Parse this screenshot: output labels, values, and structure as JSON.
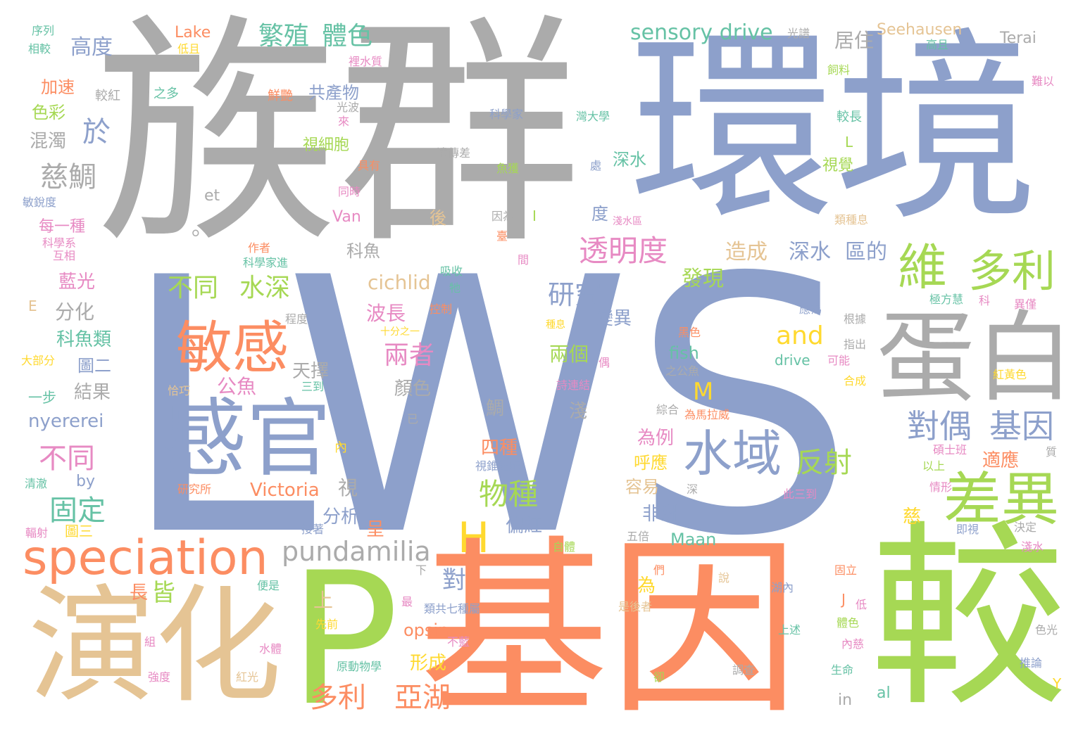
{
  "palette": {
    "gray": "#ababab",
    "blue": "#8da0cb",
    "orange": "#fc8d62",
    "green": "#a6d854",
    "tan": "#e5c494",
    "yellow": "#ffd92f",
    "pink": "#e78ac3",
    "teal": "#66c2a5"
  },
  "words": [
    {
      "text": "LWS",
      "color": "#8da0cb"
    },
    {
      "text": "族群",
      "color": "#ababab"
    },
    {
      "text": "環境",
      "color": "#8da0cb"
    },
    {
      "text": "基因",
      "color": "#fc8d62"
    },
    {
      "text": "較",
      "color": "#a6d854"
    },
    {
      "text": "P",
      "color": "#a6d854"
    },
    {
      "text": "演化",
      "color": "#e5c494"
    },
    {
      "text": "蛋白",
      "color": "#ababab"
    },
    {
      "text": "感官",
      "color": "#8da0cb"
    },
    {
      "text": "speciation",
      "color": "#fc8d62"
    },
    {
      "text": "差異",
      "color": "#a6d854"
    },
    {
      "text": "敏感",
      "color": "#fc8d62"
    },
    {
      "text": "水域",
      "color": "#8da0cb"
    },
    {
      "text": "維",
      "color": "#a6d854"
    },
    {
      "text": "多利",
      "color": "#a6d854"
    },
    {
      "text": "H",
      "color": "#ffd92f"
    },
    {
      "text": "pundamilia",
      "color": "#ababab"
    },
    {
      "text": "透明度",
      "color": "#e78ac3"
    },
    {
      "text": "對偶",
      "color": "#8da0cb"
    },
    {
      "text": "基因",
      "color": "#8da0cb"
    },
    {
      "text": "反射",
      "color": "#a6d854"
    },
    {
      "text": "物種",
      "color": "#a6d854"
    },
    {
      "text": "多利",
      "color": "#fc8d62"
    },
    {
      "text": "亞湖",
      "color": "#fc8d62"
    },
    {
      "text": "固定",
      "color": "#66c2a5"
    },
    {
      "text": "不同",
      "color": "#e78ac3"
    },
    {
      "text": "不同",
      "color": "#a6d854"
    },
    {
      "text": "水深",
      "color": "#a6d854"
    },
    {
      "text": "繁殖",
      "color": "#66c2a5"
    },
    {
      "text": "體色",
      "color": "#66c2a5"
    },
    {
      "text": "sensory drive",
      "color": "#66c2a5"
    },
    {
      "text": "研究",
      "color": "#8da0cb"
    },
    {
      "text": "and",
      "color": "#ffd92f"
    },
    {
      "text": "兩者",
      "color": "#e78ac3"
    },
    {
      "text": "慈鯛",
      "color": "#ababab"
    },
    {
      "text": "於",
      "color": "#8da0cb"
    },
    {
      "text": "Seehausen",
      "color": "#e5c494"
    },
    {
      "text": "Terai",
      "color": "#ababab"
    },
    {
      "text": "Lake",
      "color": "#fc8d62"
    },
    {
      "text": "高度",
      "color": "#8da0cb"
    },
    {
      "text": "居住",
      "color": "#ababab"
    },
    {
      "text": "cichlid",
      "color": "#e5c494"
    },
    {
      "text": "Victoria",
      "color": "#fc8d62"
    },
    {
      "text": "nyererei",
      "color": "#8da0cb"
    },
    {
      "text": "深水",
      "color": "#8da0cb"
    },
    {
      "text": "區的",
      "color": "#8da0cb"
    },
    {
      "text": "造成",
      "color": "#e5c494"
    },
    {
      "text": "發現",
      "color": "#a6d854"
    },
    {
      "text": "M",
      "color": "#ffd92f"
    },
    {
      "text": "fish",
      "color": "#66c2a5"
    },
    {
      "text": "drive",
      "color": "#66c2a5"
    },
    {
      "text": "opsin",
      "color": "#fc8d62"
    },
    {
      "text": "Maan",
      "color": "#66c2a5"
    },
    {
      "text": "Van",
      "color": "#e78ac3"
    },
    {
      "text": "et",
      "color": "#ababab"
    },
    {
      "text": "al",
      "color": "#66c2a5"
    },
    {
      "text": "in",
      "color": "#ababab"
    },
    {
      "text": "by",
      "color": "#8da0cb"
    },
    {
      "text": "E",
      "color": "#e5c494"
    },
    {
      "text": "L",
      "color": "#a6d854"
    },
    {
      "text": "J",
      "color": "#fc8d62"
    },
    {
      "text": "I",
      "color": "#a6d854"
    },
    {
      "text": "Y",
      "color": "#ffd92f"
    },
    {
      "text": "。",
      "color": "#ababab"
    },
    {
      "text": "波長",
      "color": "#e78ac3"
    },
    {
      "text": "變異",
      "color": "#8da0cb"
    },
    {
      "text": "兩個",
      "color": "#a6d854"
    },
    {
      "text": "公魚",
      "color": "#e78ac3"
    },
    {
      "text": "天擇",
      "color": "#ababab"
    },
    {
      "text": "顏色",
      "color": "#ababab"
    },
    {
      "text": "分化",
      "color": "#ababab"
    },
    {
      "text": "科魚類",
      "color": "#66c2a5"
    },
    {
      "text": "藍光",
      "color": "#e78ac3"
    },
    {
      "text": "每一種",
      "color": "#e78ac3"
    },
    {
      "text": "結果",
      "color": "#ababab"
    },
    {
      "text": "圖二",
      "color": "#8da0cb"
    },
    {
      "text": "混濁",
      "color": "#ababab"
    },
    {
      "text": "色彩",
      "color": "#a6d854"
    },
    {
      "text": "加速",
      "color": "#fc8d62"
    },
    {
      "text": "共產物",
      "color": "#8da0cb"
    },
    {
      "text": "視細胞",
      "color": "#a6d854"
    },
    {
      "text": "深水",
      "color": "#66c2a5"
    },
    {
      "text": "度",
      "color": "#8da0cb"
    },
    {
      "text": "淺",
      "color": "#ababab"
    },
    {
      "text": "非洲",
      "color": "#8da0cb"
    },
    {
      "text": "偏紅",
      "color": "#8da0cb"
    },
    {
      "text": "容易",
      "color": "#e5c494"
    },
    {
      "text": "呼應",
      "color": "#ffd92f"
    },
    {
      "text": "為例",
      "color": "#e78ac3"
    },
    {
      "text": "四種",
      "color": "#fc8d62"
    },
    {
      "text": "分析",
      "color": "#8da0cb"
    },
    {
      "text": "長",
      "color": "#fc8d62"
    },
    {
      "text": "皆",
      "color": "#a6d854"
    },
    {
      "text": "對",
      "color": "#8da0cb"
    },
    {
      "text": "上",
      "color": "#e5c494"
    },
    {
      "text": "形成",
      "color": "#ffd92f"
    },
    {
      "text": "視覺",
      "color": "#a6d854"
    },
    {
      "text": "適應",
      "color": "#fc8d62"
    },
    {
      "text": "慈",
      "color": "#ffd92f"
    },
    {
      "text": "為",
      "color": "#ffd92f"
    },
    {
      "text": "一步",
      "color": "#66c2a5"
    },
    {
      "text": "科魚",
      "color": "#ababab"
    },
    {
      "text": "後",
      "color": "#e5c494"
    },
    {
      "text": "呈",
      "color": "#fc8d62"
    },
    {
      "text": "視",
      "color": "#ababab"
    },
    {
      "text": "鯛",
      "color": "#ababab"
    },
    {
      "text": "序列",
      "color": "#66c2a5"
    },
    {
      "text": "相較",
      "color": "#66c2a5"
    },
    {
      "text": "低且",
      "color": "#ffd92f"
    },
    {
      "text": "裡水質",
      "color": "#e78ac3"
    },
    {
      "text": "光譜",
      "color": "#ababab"
    },
    {
      "text": "高且",
      "color": "#66c2a5"
    },
    {
      "text": "飼料",
      "color": "#a6d854"
    },
    {
      "text": "難以",
      "color": "#e78ac3"
    },
    {
      "text": "較紅",
      "color": "#ababab"
    },
    {
      "text": "之多",
      "color": "#66c2a5"
    },
    {
      "text": "鮮艷",
      "color": "#fc8d62"
    },
    {
      "text": "光波",
      "color": "#ababab"
    },
    {
      "text": "來",
      "color": "#e78ac3"
    },
    {
      "text": "科學家",
      "color": "#8da0cb"
    },
    {
      "text": "灣大學",
      "color": "#66c2a5"
    },
    {
      "text": "較長",
      "color": "#66c2a5"
    },
    {
      "text": "遺傳差",
      "color": "#ababab"
    },
    {
      "text": "具有",
      "color": "#fc8d62"
    },
    {
      "text": "魚獲",
      "color": "#a6d854"
    },
    {
      "text": "處",
      "color": "#8da0cb"
    },
    {
      "text": "同時",
      "color": "#e78ac3"
    },
    {
      "text": "敏銳度",
      "color": "#8da0cb"
    },
    {
      "text": "因為",
      "color": "#ababab"
    },
    {
      "text": "淺水區",
      "color": "#e78ac3"
    },
    {
      "text": "類種息",
      "color": "#e5c494"
    },
    {
      "text": "科學系",
      "color": "#e78ac3"
    },
    {
      "text": "互相",
      "color": "#e78ac3"
    },
    {
      "text": "作者",
      "color": "#fc8d62"
    },
    {
      "text": "科學家進",
      "color": "#66c2a5"
    },
    {
      "text": "臺",
      "color": "#fc8d62"
    },
    {
      "text": "吸收",
      "color": "#66c2a5"
    },
    {
      "text": "間",
      "color": "#e78ac3"
    },
    {
      "text": "牠",
      "color": "#66c2a5"
    },
    {
      "text": "程度",
      "color": "#ababab"
    },
    {
      "text": "控制",
      "color": "#fc8d62"
    },
    {
      "text": "十分之一",
      "color": "#ffd92f"
    },
    {
      "text": "種息",
      "color": "#ffd92f"
    },
    {
      "text": "黑色",
      "color": "#fc8d62"
    },
    {
      "text": "應為",
      "color": "#8da0cb"
    },
    {
      "text": "根據",
      "color": "#ababab"
    },
    {
      "text": "極方慧",
      "color": "#66c2a5"
    },
    {
      "text": "科",
      "color": "#e78ac3"
    },
    {
      "text": "異僅",
      "color": "#e78ac3"
    },
    {
      "text": "指出",
      "color": "#ababab"
    },
    {
      "text": "可能",
      "color": "#e78ac3"
    },
    {
      "text": "偶",
      "color": "#e78ac3"
    },
    {
      "text": "大部分",
      "color": "#ffd92f"
    },
    {
      "text": "詩連結",
      "color": "#e78ac3"
    },
    {
      "text": "之公魚",
      "color": "#ababab"
    },
    {
      "text": "合成",
      "color": "#ffd92f"
    },
    {
      "text": "紅黃色",
      "color": "#ffd92f"
    },
    {
      "text": "三到",
      "color": "#66c2a5"
    },
    {
      "text": "恰巧",
      "color": "#e5c494"
    },
    {
      "text": "已",
      "color": "#ababab"
    },
    {
      "text": "綜合",
      "color": "#ababab"
    },
    {
      "text": "為馬拉威",
      "color": "#fc8d62"
    },
    {
      "text": "碩士班",
      "color": "#e78ac3"
    },
    {
      "text": "質",
      "color": "#ababab"
    },
    {
      "text": "內",
      "color": "#ffd92f"
    },
    {
      "text": "視錐細胞",
      "color": "#8da0cb"
    },
    {
      "text": "以上",
      "color": "#a6d854"
    },
    {
      "text": "清澈",
      "color": "#66c2a5"
    },
    {
      "text": "研究所",
      "color": "#fc8d62"
    },
    {
      "text": "深",
      "color": "#ababab"
    },
    {
      "text": "此三到",
      "color": "#e78ac3"
    },
    {
      "text": "情形",
      "color": "#e78ac3"
    },
    {
      "text": "輻射",
      "color": "#e78ac3"
    },
    {
      "text": "圖三",
      "color": "#ffd92f"
    },
    {
      "text": "接著",
      "color": "#8da0cb"
    },
    {
      "text": "自體",
      "color": "#a6d854"
    },
    {
      "text": "五倍",
      "color": "#ababab"
    },
    {
      "text": "即視",
      "color": "#8da0cb"
    },
    {
      "text": "決定",
      "color": "#ababab"
    },
    {
      "text": "淺水",
      "color": "#e78ac3"
    },
    {
      "text": "下",
      "color": "#ababab"
    },
    {
      "text": "們",
      "color": "#fc8d62"
    },
    {
      "text": "固立",
      "color": "#fc8d62"
    },
    {
      "text": "便是",
      "color": "#66c2a5"
    },
    {
      "text": "說",
      "color": "#e5c494"
    },
    {
      "text": "湖內",
      "color": "#8da0cb"
    },
    {
      "text": "最",
      "color": "#e78ac3"
    },
    {
      "text": "類共七種屬",
      "color": "#8da0cb"
    },
    {
      "text": "是後者",
      "color": "#e5c494"
    },
    {
      "text": "低",
      "color": "#e78ac3"
    },
    {
      "text": "先前",
      "color": "#ffd92f"
    },
    {
      "text": "體色",
      "color": "#a6d854"
    },
    {
      "text": "不藍",
      "color": "#e78ac3"
    },
    {
      "text": "上述",
      "color": "#66c2a5"
    },
    {
      "text": "色光",
      "color": "#ababab"
    },
    {
      "text": "內慈",
      "color": "#e78ac3"
    },
    {
      "text": "組",
      "color": "#e78ac3"
    },
    {
      "text": "水體",
      "color": "#e78ac3"
    },
    {
      "text": "原動物學",
      "color": "#66c2a5"
    },
    {
      "text": "推論",
      "color": "#8da0cb"
    },
    {
      "text": "生命",
      "color": "#66c2a5"
    },
    {
      "text": "強度",
      "color": "#e78ac3"
    },
    {
      "text": "紅光",
      "color": "#e5c494"
    },
    {
      "text": "卻",
      "color": "#a6d854"
    },
    {
      "text": "調查",
      "color": "#ababab"
    }
  ]
}
